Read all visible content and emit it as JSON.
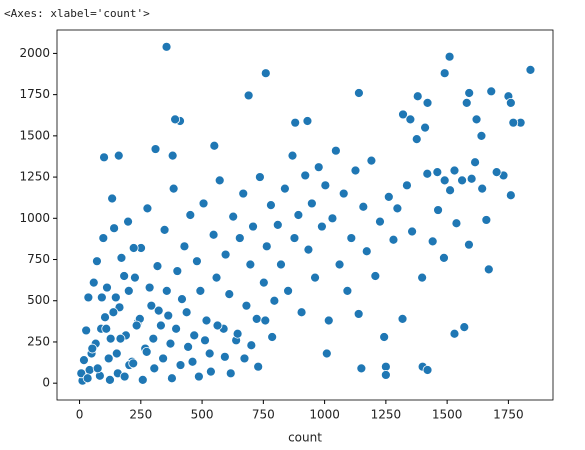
{
  "chart_data": {
    "type": "scatter",
    "title": "<Axes: xlabel='count'>",
    "xlabel": "count",
    "color": "#1f77b4",
    "xlim": [
      -92,
      1932
    ],
    "ylim": [
      -102,
      2142
    ],
    "xticks": [
      0,
      250,
      500,
      750,
      1000,
      1250,
      1500,
      1750
    ],
    "yticks": [
      0,
      250,
      500,
      750,
      1000,
      1250,
      1500,
      1750,
      2000
    ],
    "x": [
      355,
      690,
      760,
      1840,
      1510,
      1490,
      1140,
      1680,
      1750,
      1590,
      1580,
      1760,
      1380,
      1420,
      1800,
      1770,
      410,
      390,
      880,
      930,
      1640,
      1620,
      1730,
      1760,
      1660,
      1670,
      1570,
      1530,
      1400,
      1420,
      1250,
      1150,
      1250,
      160,
      100,
      310,
      380,
      550,
      1600,
      1530,
      1460,
      1490,
      1320,
      1350,
      1410,
      12,
      27,
      41,
      58,
      66,
      83,
      97,
      104,
      119,
      133,
      148,
      156,
      171,
      189,
      198,
      214,
      226,
      239,
      251,
      268,
      277,
      293,
      305,
      318,
      332,
      347,
      356,
      371,
      384,
      399,
      412,
      428,
      437,
      452,
      468,
      479,
      493,
      506,
      518,
      531,
      547,
      559,
      572,
      588,
      596,
      611,
      627,
      639,
      654,
      668,
      681,
      697,
      708,
      723,
      736,
      752,
      764,
      781,
      795,
      809,
      822,
      838,
      851,
      869,
      877,
      893,
      906,
      921,
      934,
      948,
      961,
      976,
      989,
      1003,
      1017,
      1032,
      1046,
      1061,
      1078,
      1093,
      1109,
      1126,
      1139,
      1158,
      1172,
      1191,
      1207,
      1226,
      1243,
      1262,
      1281,
      1297,
      1318,
      1336,
      1357,
      1376,
      1398,
      1419,
      1441,
      1463,
      1487,
      1512,
      1538,
      1561,
      1589,
      1614,
      1643,
      1702,
      36,
      49,
      71,
      88,
      112,
      127,
      141,
      163,
      182,
      203,
      221,
      246,
      7,
      18,
      33,
      52,
      74,
      91,
      109,
      124,
      138,
      152,
      167,
      184,
      201,
      219,
      233,
      258,
      274,
      286,
      301,
      323,
      341,
      362,
      377,
      394,
      418,
      443,
      461,
      487,
      512,
      536,
      563,
      593,
      617,
      645,
      673,
      701,
      729,
      758,
      786,
      1009
    ],
    "values": [
      2040,
      1745,
      1880,
      1900,
      1980,
      1880,
      1760,
      1770,
      1740,
      1760,
      1700,
      1700,
      1740,
      1700,
      1580,
      1580,
      1590,
      1600,
      1580,
      1590,
      1500,
      1600,
      1260,
      1140,
      990,
      690,
      340,
      300,
      100,
      80,
      100,
      90,
      50,
      1380,
      1370,
      1420,
      1380,
      1440,
      1240,
      1290,
      1280,
      1230,
      1630,
      1600,
      1550,
      15,
      320,
      80,
      610,
      240,
      45,
      880,
      400,
      150,
      1120,
      520,
      60,
      760,
      290,
      980,
      130,
      640,
      370,
      820,
      210,
      1060,
      470,
      90,
      710,
      350,
      930,
      560,
      240,
      1180,
      680,
      110,
      830,
      430,
      1020,
      290,
      740,
      560,
      1090,
      380,
      180,
      900,
      640,
      1230,
      330,
      780,
      540,
      1010,
      260,
      880,
      1150,
      470,
      720,
      950,
      390,
      1250,
      610,
      830,
      1080,
      500,
      960,
      720,
      1180,
      560,
      1380,
      880,
      1020,
      430,
      1260,
      810,
      1090,
      640,
      1310,
      950,
      1200,
      380,
      1000,
      1410,
      720,
      1150,
      560,
      880,
      1290,
      420,
      1070,
      800,
      1350,
      650,
      980,
      280,
      1130,
      870,
      1060,
      390,
      1200,
      920,
      1480,
      640,
      1270,
      860,
      1050,
      760,
      1170,
      970,
      1230,
      840,
      1340,
      1180,
      1280,
      520,
      180,
      740,
      330,
      580,
      270,
      940,
      460,
      650,
      110,
      820,
      390,
      60,
      140,
      30,
      210,
      90,
      520,
      330,
      20,
      430,
      180,
      270,
      40,
      560,
      120,
      350,
      20,
      190,
      580,
      270,
      440,
      150,
      410,
      30,
      330,
      510,
      220,
      130,
      40,
      260,
      70,
      350,
      160,
      60,
      300,
      150,
      230,
      100,
      380,
      280,
      180
    ]
  }
}
